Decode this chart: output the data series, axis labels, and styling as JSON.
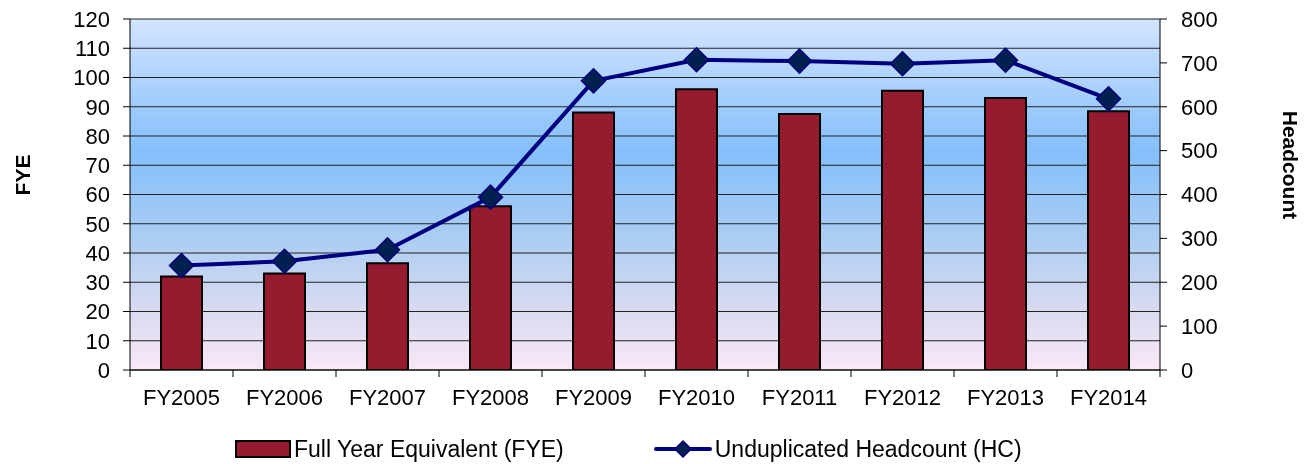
{
  "chart_data": {
    "type": "bar",
    "ylabel": "FYE",
    "y2label": "Headcount",
    "categories": [
      "FY2005",
      "FY2006",
      "FY2007",
      "FY2008",
      "FY2009",
      "FY2010",
      "FY2011",
      "FY2012",
      "FY2013",
      "FY2014"
    ],
    "series": [
      {
        "name": "Full Year Equivalent (FYE)",
        "color": "#951b2f",
        "values": [
          32,
          33,
          36.5,
          56,
          88,
          96,
          87.5,
          95.5,
          93,
          88.5
        ]
      },
      {
        "name": "Unduplicated Headcount (HC)",
        "type": "line",
        "axis": "y2",
        "color": "#000080",
        "marker": "diamond",
        "values": [
          238,
          248,
          274,
          394,
          659,
          707,
          704,
          698,
          706,
          618
        ]
      }
    ],
    "ylim": [
      0,
      120
    ],
    "yticks": [
      0,
      10,
      20,
      30,
      40,
      50,
      60,
      70,
      80,
      90,
      100,
      110,
      120
    ],
    "y2lim": [
      0,
      800
    ],
    "y2ticks": [
      0,
      100,
      200,
      300,
      400,
      500,
      600,
      700,
      800
    ],
    "grid": "y",
    "legend": "bottom"
  }
}
